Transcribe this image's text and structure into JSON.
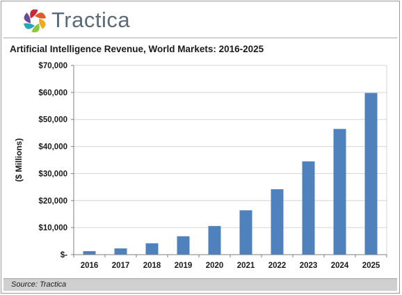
{
  "header": {
    "brand_name": "Tractica",
    "logo_colors": [
      "#e05a2a",
      "#f2a81e",
      "#8dc63f",
      "#2aa6b8",
      "#6a4a9c",
      "#c8283a"
    ]
  },
  "title": "Artificial Intelligence Revenue, World Markets: 2016-2025",
  "footer": {
    "source": "Source: Tractica"
  },
  "chart_data": {
    "type": "bar",
    "title": "Artificial Intelligence Revenue, World Markets: 2016-2025",
    "xlabel": "",
    "ylabel": "($ Millions)",
    "categories": [
      "2016",
      "2017",
      "2018",
      "2019",
      "2020",
      "2021",
      "2022",
      "2023",
      "2024",
      "2025"
    ],
    "values": [
      1300,
      2300,
      4200,
      6800,
      10600,
      16400,
      24200,
      34500,
      46500,
      59800
    ],
    "ylim": [
      0,
      70000
    ],
    "y_ticks": [
      0,
      10000,
      20000,
      30000,
      40000,
      50000,
      60000,
      70000
    ],
    "y_tick_labels": [
      "$-",
      "$10,000",
      "$20,000",
      "$30,000",
      "$40,000",
      "$50,000",
      "$60,000",
      "$70,000"
    ],
    "bar_color": "#4f81bd",
    "grid": true,
    "legend": "none"
  }
}
